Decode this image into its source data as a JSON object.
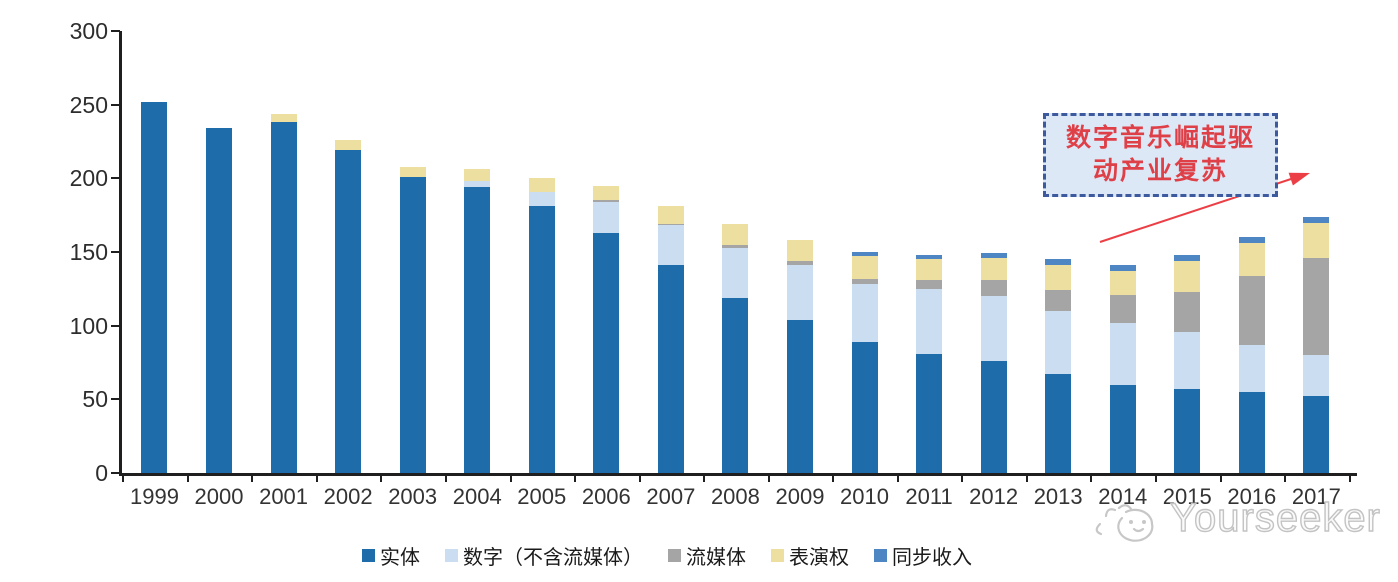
{
  "chart_data": {
    "type": "bar",
    "stacked": true,
    "title": "",
    "xlabel": "",
    "ylabel": "",
    "ylim": [
      0,
      300
    ],
    "y_ticks": [
      0,
      50,
      100,
      150,
      200,
      250,
      300
    ],
    "grid": false,
    "legend_position": "bottom",
    "axis_color": "#1f1f1f",
    "categories": [
      "1999",
      "2000",
      "2001",
      "2002",
      "2003",
      "2004",
      "2005",
      "2006",
      "2007",
      "2008",
      "2009",
      "2010",
      "2011",
      "2012",
      "2013",
      "2014",
      "2015",
      "2016",
      "2017"
    ],
    "series": [
      {
        "name": "实体",
        "color": "#1E6CA9",
        "values": [
          252,
          234,
          238,
          219,
          201,
          194,
          181,
          163,
          141,
          119,
          104,
          89,
          81,
          76,
          67,
          60,
          57,
          55,
          52
        ]
      },
      {
        "name": "数字（不含流媒体）",
        "color": "#CBDDF0",
        "values": [
          0,
          0,
          0,
          0,
          0,
          4,
          10,
          21,
          27,
          34,
          37,
          39,
          44,
          44,
          43,
          42,
          39,
          32,
          28
        ]
      },
      {
        "name": "流媒体",
        "color": "#A5A5A5",
        "values": [
          0,
          0,
          0,
          0,
          0,
          0,
          0,
          1,
          1,
          2,
          3,
          4,
          6,
          11,
          14,
          19,
          27,
          47,
          66
        ]
      },
      {
        "name": "表演权",
        "color": "#EDDF9F",
        "values": [
          0,
          0,
          6,
          7,
          7,
          8,
          9,
          10,
          12,
          14,
          14,
          15,
          14,
          15,
          17,
          16,
          21,
          22,
          24
        ]
      },
      {
        "name": "同步收入",
        "color": "#4E86C4",
        "values": [
          0,
          0,
          0,
          0,
          0,
          0,
          0,
          0,
          0,
          0,
          0,
          3,
          3,
          3,
          4,
          4,
          4,
          4,
          4
        ]
      }
    ]
  },
  "annotation": {
    "line1": "数字音乐崛起驱",
    "line2": "动产业复苏",
    "text_color": "#DF4048",
    "box_fill": "#DCE8F6",
    "box_border": "#3E5A9F",
    "arrow_color": "#EC3F45"
  },
  "watermark": {
    "text": "Yourseeker",
    "color": "#C3C3C3"
  }
}
